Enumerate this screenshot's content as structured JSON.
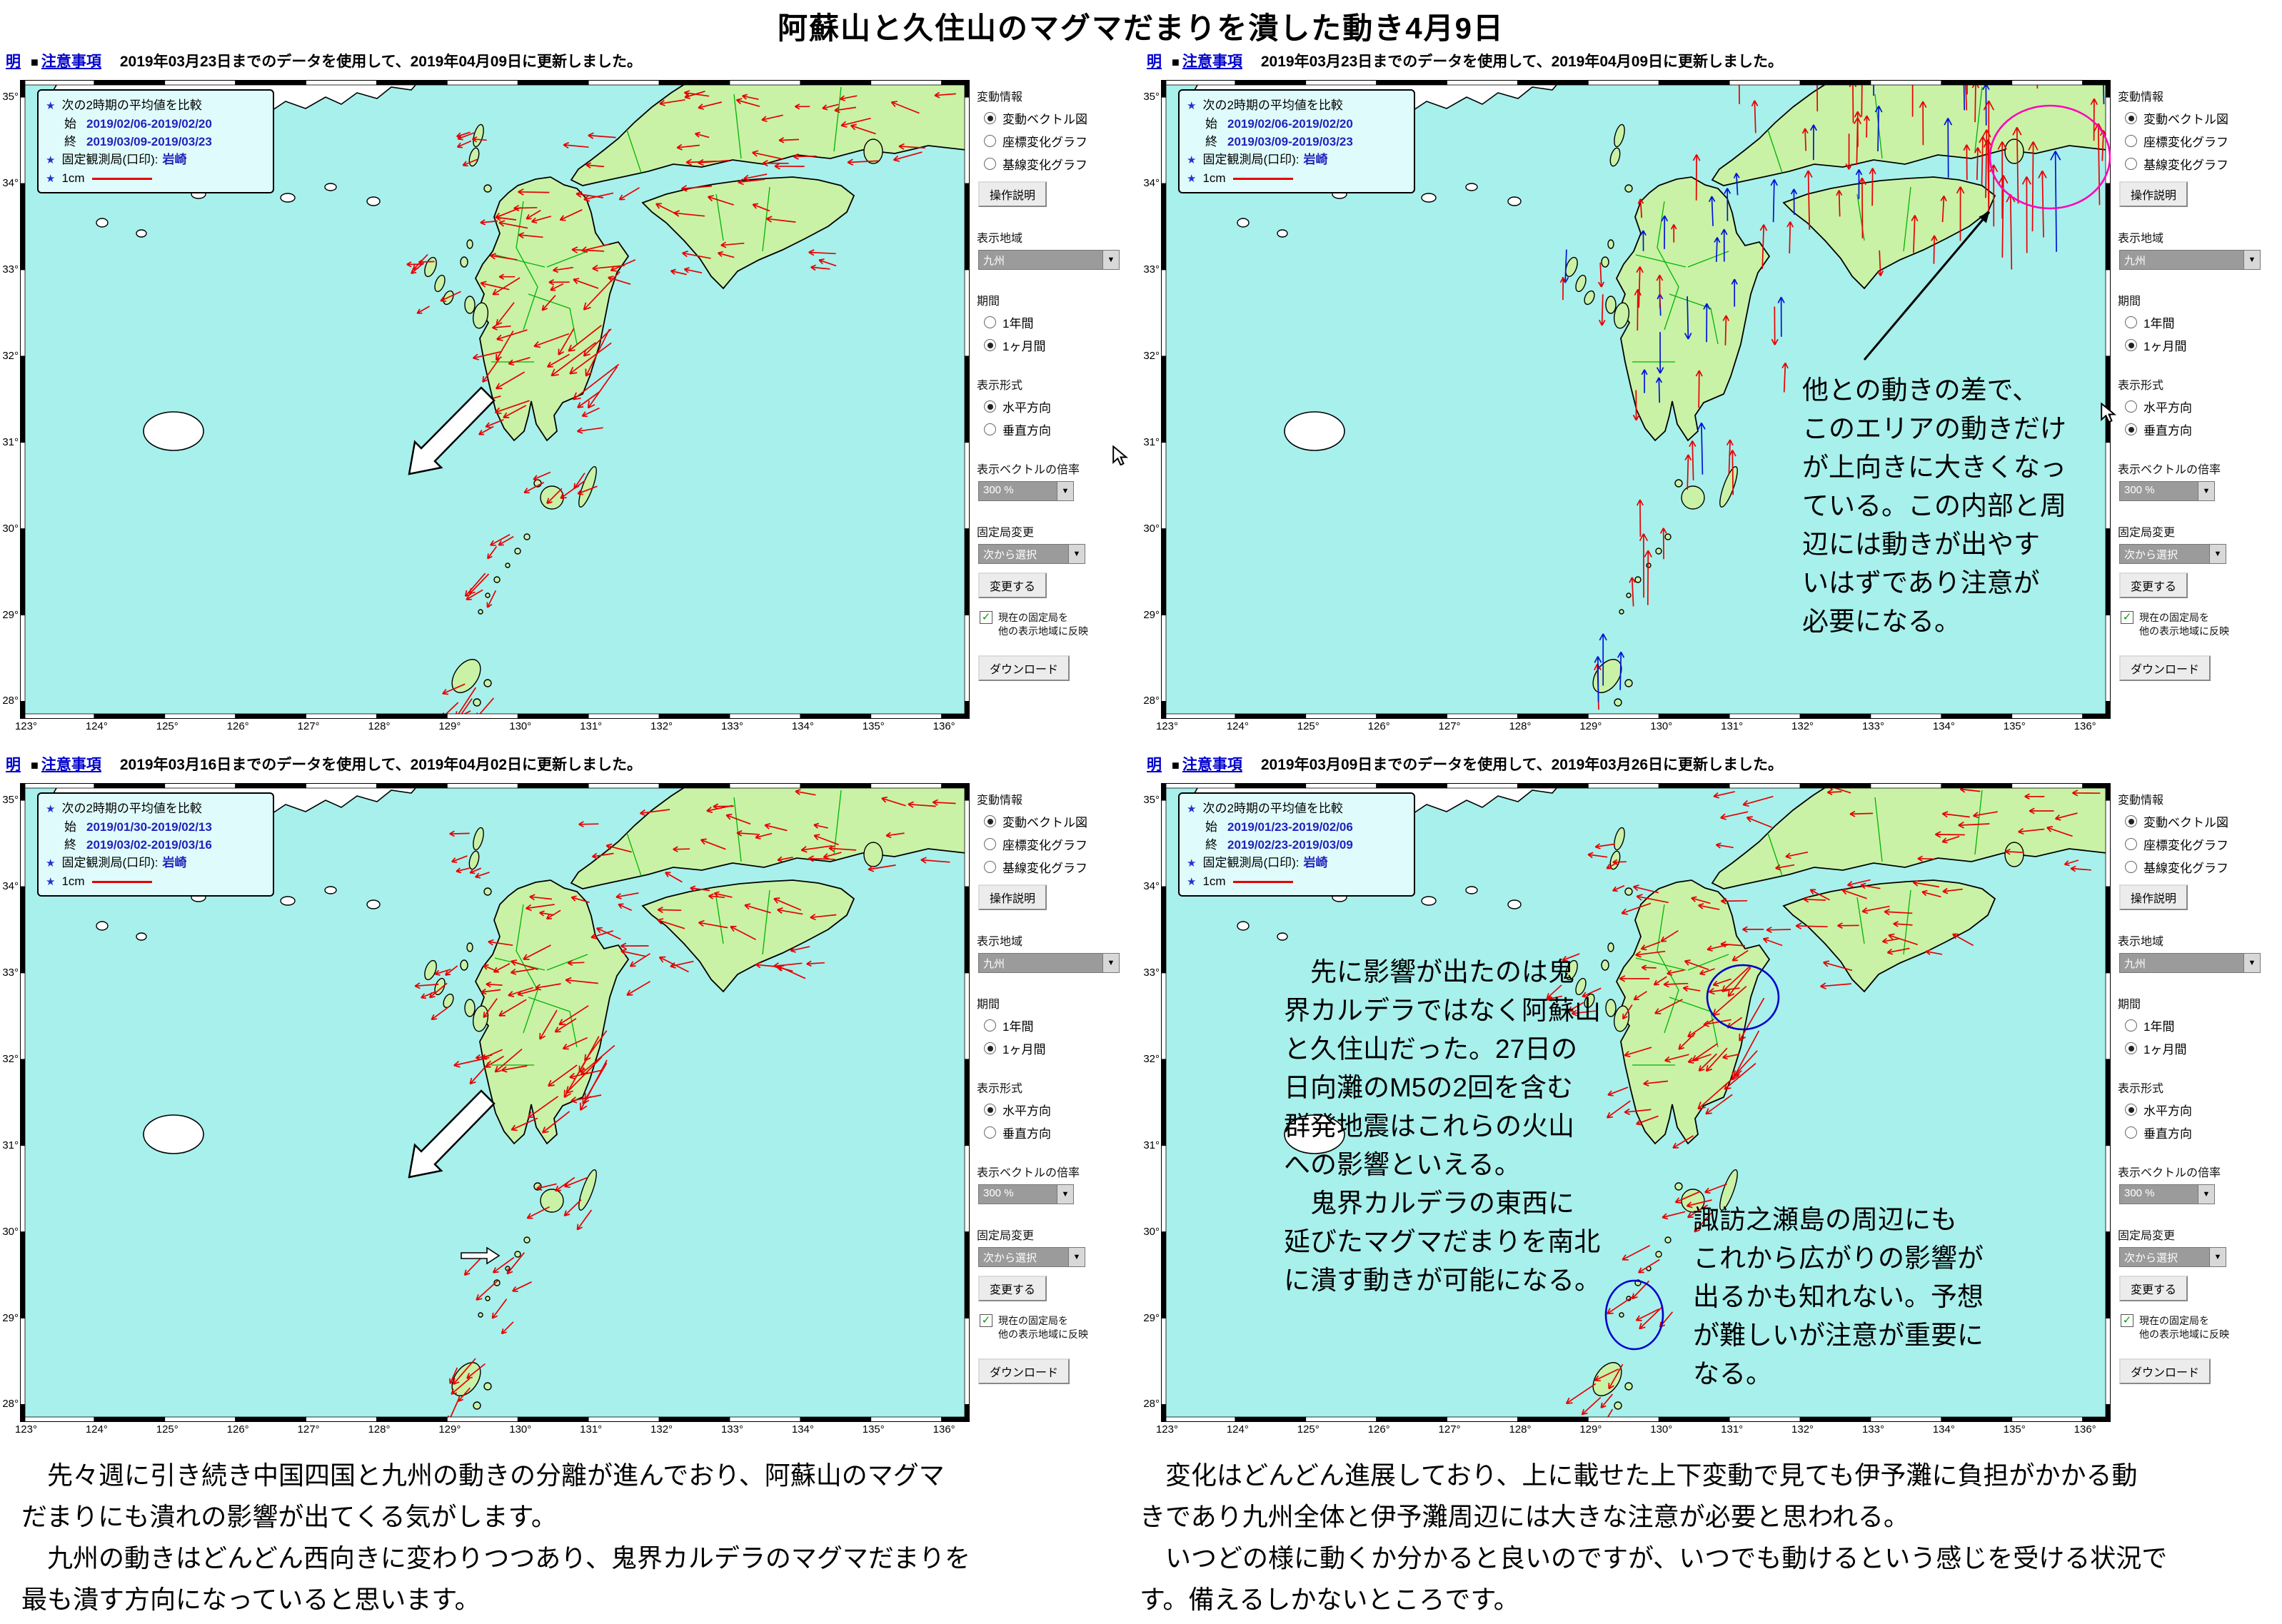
{
  "page_title": "阿蘇山と久住山のマグマだまりを潰した動き4月9日",
  "axis": {
    "lat_ticks": [
      "35°",
      "34°",
      "33°",
      "32°",
      "31°",
      "30°",
      "29°",
      "28°"
    ],
    "lon_ticks": [
      "123°",
      "124°",
      "125°",
      "126°",
      "127°",
      "128°",
      "129°",
      "130°",
      "131°",
      "132°",
      "133°",
      "134°",
      "135°",
      "136°"
    ]
  },
  "sidebar": {
    "group_label": "変動情報",
    "opt_vector": "変動ベクトル図",
    "opt_coord": "座標変化グラフ",
    "opt_baseline": "基線変化グラフ",
    "help_btn": "操作説明",
    "region_label": "表示地域",
    "region_value": "九州",
    "period_label": "期間",
    "period_year": "1年間",
    "period_month": "1ヶ月間",
    "style_label": "表示形式",
    "dir_h": "水平方向",
    "dir_v": "垂直方向",
    "scale_label": "表示ベクトルの倍率",
    "scale_value": "300 %",
    "fixed_label": "固定局変更",
    "fixed_value": "次から選択",
    "change_btn": "変更する",
    "reflect_line1": "現在の固定局を",
    "reflect_line2": "他の表示地域に反映",
    "download_btn": "ダウンロード"
  },
  "legend_common": {
    "compare": "次の2時期の平均値を比較",
    "start_label": "始",
    "end_label": "終",
    "fixed_label": "固定観測局(口印):",
    "station": "岩崎",
    "scale_label": "1cm"
  },
  "panels": [
    {
      "header": {
        "link1": "明",
        "bullet": "■",
        "link2": "注意事項",
        "notice": "2019年03月23日までのデータを使用して、2019年04月09日に更新しました。"
      },
      "legend": {
        "start": "2019/02/06-2019/02/20",
        "end": "2019/03/09-2019/03/23"
      },
      "direction": "水平方向",
      "notes": []
    },
    {
      "header": {
        "link1": "明",
        "bullet": "■",
        "link2": "注意事項",
        "notice": "2019年03月23日までのデータを使用して、2019年04月09日に更新しました。"
      },
      "legend": {
        "start": "2019/02/06-2019/02/20",
        "end": "2019/03/09-2019/03/23"
      },
      "direction": "垂直方向",
      "notes": [
        {
          "lines": [
            "他との動きの差で、",
            "このエリアの動きだけ",
            "が上向きに大きくなっ",
            "ている。この内部と周",
            "辺には動きが出やす",
            "いはずであり注意が",
            "必要になる。"
          ]
        }
      ]
    },
    {
      "header": {
        "link1": "明",
        "bullet": "■",
        "link2": "注意事項",
        "notice": "2019年03月16日までのデータを使用して、2019年04月02日に更新しました。"
      },
      "legend": {
        "start": "2019/01/30-2019/02/13",
        "end": "2019/03/02-2019/03/16"
      },
      "direction": "水平方向",
      "notes": []
    },
    {
      "header": {
        "link1": "明",
        "bullet": "■",
        "link2": "注意事項",
        "notice": "2019年03月09日までのデータを使用して、2019年03月26日に更新しました。"
      },
      "legend": {
        "start": "2019/01/23-2019/02/06",
        "end": "2019/02/23-2019/03/09"
      },
      "direction": "水平方向",
      "notes": [
        {
          "lines": [
            "　先に影響が出たのは鬼",
            "界カルデラではなく阿蘇山",
            "と久住山だった。27日の",
            "日向灘のM5の2回を含む",
            "群発地震はこれらの火山",
            "への影響といえる。",
            "　鬼界カルデラの東西に",
            "延びたマグマだまりを南北",
            "に潰す動きが可能になる。"
          ]
        },
        {
          "lines": [
            "諏訪之瀬島の周辺にも",
            "これから広がりの影響が",
            "出るかも知れない。予想",
            "が難しいが注意が重要に",
            "なる。"
          ]
        }
      ]
    }
  ],
  "footer": {
    "left_lines": [
      "　先々週に引き続き中国四国と九州の動きの分離が進んでおり、阿蘇山のマグマ",
      "だまりにも潰れの影響が出てくる気がします。",
      "　九州の動きはどんどん西向きに変わりつつあり、鬼界カルデラのマグマだまりを",
      "最も潰す方向になっていると思います。"
    ],
    "right_lines": [
      "　変化はどんどん進展しており、上に載せた上下変動で見ても伊予灘に負担がかかる動",
      "きであり九州全体と伊予灘周辺には大きな注意が必要と思われる。",
      "　いつどの様に動くか分かると良いのですが、いつでも動けるという感じを受ける状況で",
      "す。備えるしかないところです。"
    ]
  },
  "colors": {
    "sea": "#a8f0ec",
    "land": "#c9f2a6",
    "korea_land": "#ffffff",
    "vector_red": "#e60000",
    "vector_blue": "#0014d8",
    "pref_border_green": "#00b400",
    "link_blue": "#0000cc",
    "date_blue": "#2222bb",
    "highlight_magenta": "#ff00bb",
    "highlight_blue": "#0000cc"
  }
}
